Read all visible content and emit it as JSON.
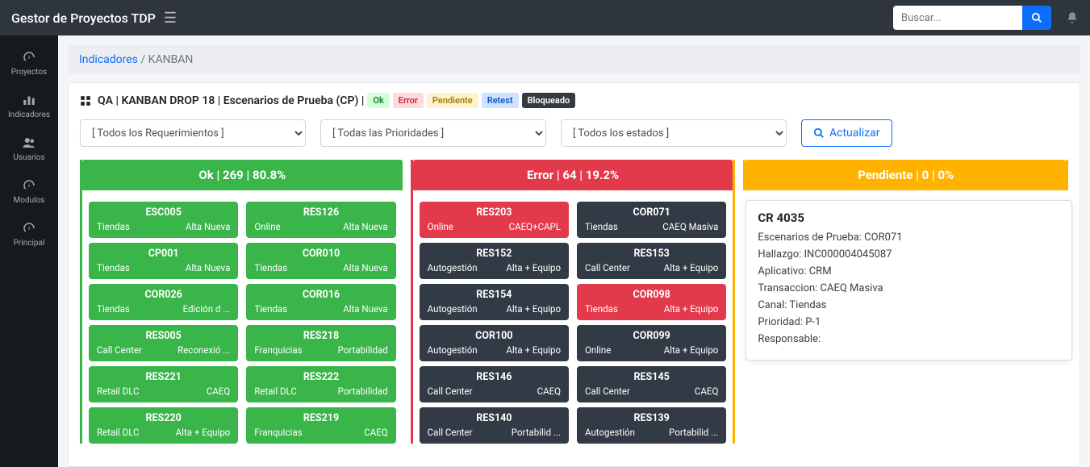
{
  "topbar": {
    "brand": "Gestor de Proyectos TDP",
    "search_placeholder": "Buscar..."
  },
  "sidebar": {
    "items": [
      {
        "icon": "speedometer",
        "label": "Proyectos"
      },
      {
        "icon": "chart",
        "label": "Indicadores"
      },
      {
        "icon": "users",
        "label": "Usuarios"
      },
      {
        "icon": "speedometer",
        "label": "Modulos"
      },
      {
        "icon": "speedometer",
        "label": "Principal"
      }
    ]
  },
  "breadcrumb": {
    "link": "Indicadores",
    "sep": " / ",
    "current": "KANBAN"
  },
  "panel": {
    "title_prefix": "QA | KANBAN DROP 18 | Escenarios de Prueba (CP) | ",
    "badges": {
      "ok": "Ok",
      "error": "Error",
      "pendiente": "Pendiente",
      "retest": "Retest",
      "bloqueado": "Bloqueado"
    }
  },
  "filters": {
    "req": "[ Todos los Requerimientos ]",
    "prio": "[ Todas las Prioridades ]",
    "estado": "[ Todos los estados ]",
    "actualizar": "Actualizar"
  },
  "columns": {
    "ok": {
      "header": "Ok | 269 | 80.8%"
    },
    "error": {
      "header": "Error | 64 | 19.2%"
    },
    "pendiente": {
      "header": "Pendiente | 0 | 0%"
    }
  },
  "cards": {
    "ok_left": [
      {
        "id": "ESC005",
        "l": "Tiendas",
        "r": "Alta Nueva"
      },
      {
        "id": "CP001",
        "l": "Tiendas",
        "r": "Alta Nueva"
      },
      {
        "id": "COR026",
        "l": "Tiendas",
        "r": "Edición d ..."
      },
      {
        "id": "RES005",
        "l": "Call Center",
        "r": "Reconexió ..."
      },
      {
        "id": "RES221",
        "l": "Retail DLC",
        "r": "CAEQ"
      },
      {
        "id": "RES220",
        "l": "Retail DLC",
        "r": "Alta + Equipo"
      }
    ],
    "ok_right": [
      {
        "id": "RES126",
        "l": "Online",
        "r": "Alta Nueva"
      },
      {
        "id": "COR010",
        "l": "Tiendas",
        "r": "Alta Nueva"
      },
      {
        "id": "COR016",
        "l": "Tiendas",
        "r": "Alta Nueva"
      },
      {
        "id": "RES218",
        "l": "Franquicias",
        "r": "Portabilidad"
      },
      {
        "id": "RES222",
        "l": "Retail DLC",
        "r": "Portabilidad"
      },
      {
        "id": "RES219",
        "l": "Franquicias",
        "r": "CAEQ"
      }
    ],
    "err_left": [
      {
        "id": "RES203",
        "l": "Online",
        "r": "CAEQ+CAPL",
        "cls": "c-red"
      },
      {
        "id": "RES152",
        "l": "Autogestión",
        "r": "Alta + Equipo",
        "cls": "c-dark"
      },
      {
        "id": "RES154",
        "l": "Autogestión",
        "r": "Alta + Equipo",
        "cls": "c-dark"
      },
      {
        "id": "COR100",
        "l": "Autogestión",
        "r": "Alta + Equipo",
        "cls": "c-dark"
      },
      {
        "id": "RES146",
        "l": "Call Center",
        "r": "CAEQ",
        "cls": "c-dark"
      },
      {
        "id": "RES140",
        "l": "Call Center",
        "r": "Portabilid ...",
        "cls": "c-dark"
      }
    ],
    "err_right": [
      {
        "id": "COR071",
        "l": "Tiendas",
        "r": "CAEQ Masiva",
        "cls": "c-dark"
      },
      {
        "id": "RES153",
        "l": "Call Center",
        "r": "Alta + Equipo",
        "cls": "c-dark"
      },
      {
        "id": "COR098",
        "l": "Tiendas",
        "r": "Alta + Equipo",
        "cls": "c-red"
      },
      {
        "id": "COR099",
        "l": "Online",
        "r": "Alta + Equipo",
        "cls": "c-dark"
      },
      {
        "id": "RES145",
        "l": "Call Center",
        "r": "CAEQ",
        "cls": "c-dark"
      },
      {
        "id": "RES139",
        "l": "Autogestión",
        "r": "Portabilid ...",
        "cls": "c-dark"
      }
    ]
  },
  "tooltip": {
    "title": "CR 4035",
    "lines": [
      "Escenarios de Prueba: COR071",
      "Hallazgo: INC000004045087",
      "Aplicativo: CRM",
      "Transaccion: CAEQ Masiva",
      "Canal: Tiendas",
      "Prioridad: P-1",
      "Responsable:"
    ]
  },
  "colors": {
    "ok": "#39b54a",
    "error": "#e33a4b",
    "pend": "#ffb300",
    "dark": "#323a45",
    "primary": "#0d6efd"
  }
}
